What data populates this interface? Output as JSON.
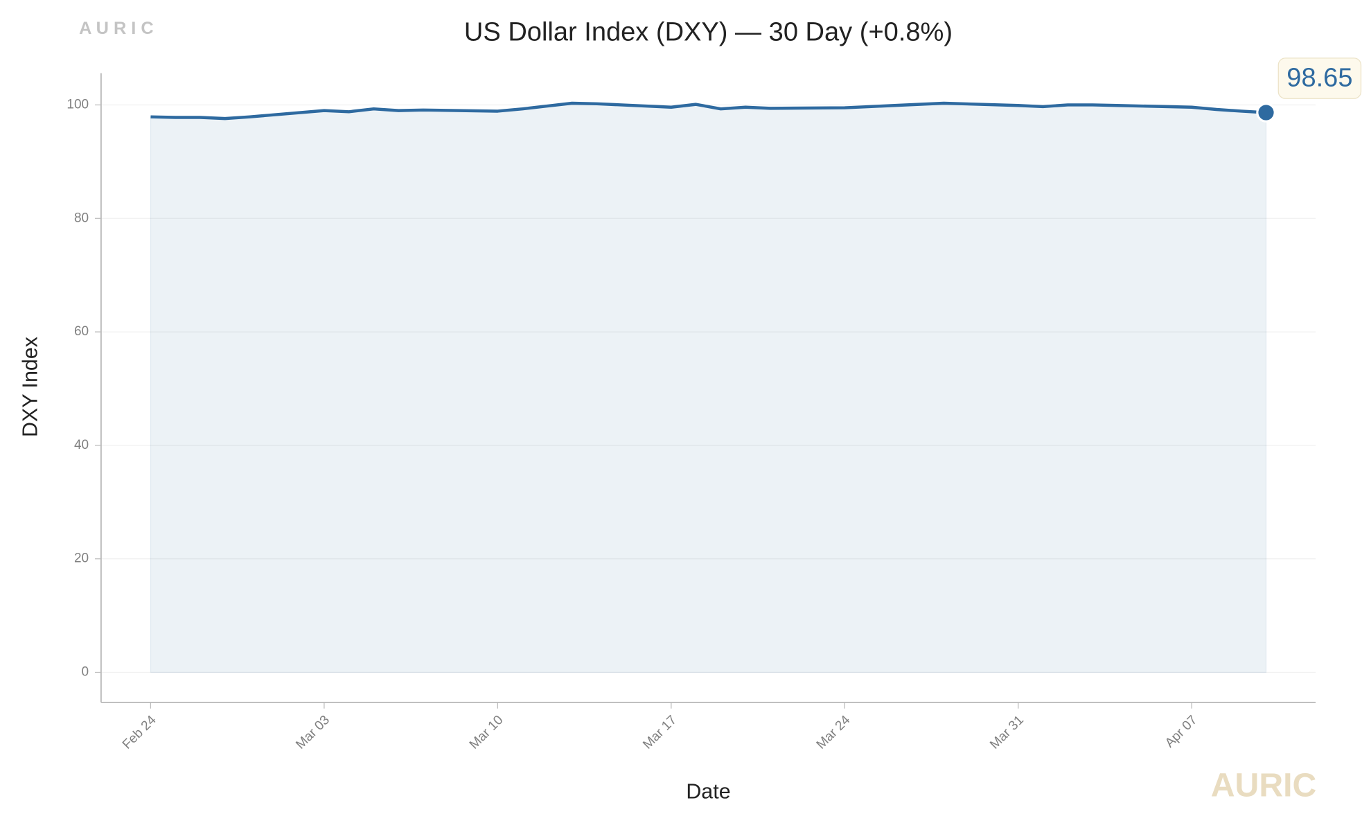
{
  "chart_data": {
    "type": "line",
    "title": "US Dollar Index (DXY) — 30 Day (+0.8%)",
    "x_label": "Date",
    "y_label": "DXY Index",
    "watermark_top": "A U R I C",
    "watermark_bottom": "AURIC",
    "x": [
      "Feb 24",
      "Feb 25",
      "Feb 26",
      "Feb 27",
      "Feb 28",
      "Mar 03",
      "Mar 04",
      "Mar 05",
      "Mar 06",
      "Mar 07",
      "Mar 10",
      "Mar 11",
      "Mar 12",
      "Mar 13",
      "Mar 14",
      "Mar 17",
      "Mar 18",
      "Mar 19",
      "Mar 20",
      "Mar 21",
      "Mar 24",
      "Mar 25",
      "Mar 26",
      "Mar 27",
      "Mar 28",
      "Mar 31",
      "Apr 01",
      "Apr 02",
      "Apr 03",
      "Apr 04",
      "Apr 07",
      "Apr 08",
      "Apr 09",
      "Apr 10"
    ],
    "series": [
      {
        "name": "DXY",
        "color": "#2e6aa0",
        "values": [
          97.9,
          97.8,
          97.8,
          97.6,
          97.9,
          99.0,
          98.8,
          99.3,
          99.0,
          99.1,
          98.9,
          99.3,
          99.8,
          100.3,
          100.2,
          99.6,
          100.1,
          99.3,
          99.6,
          99.4,
          99.5,
          99.7,
          99.9,
          100.1,
          100.3,
          99.9,
          99.7,
          100.0,
          100.0,
          99.9,
          99.6,
          99.2,
          98.9,
          98.65
        ]
      }
    ],
    "xlim": [
      "Feb 22",
      "Apr 12"
    ],
    "xticks": [
      "Feb 24",
      "Mar 03",
      "Mar 10",
      "Mar 17",
      "Mar 24",
      "Mar 31",
      "Apr 07"
    ],
    "ylim": [
      -5.3,
      105.6
    ],
    "yticks": [
      0,
      20,
      40,
      60,
      80,
      100
    ],
    "grid": true,
    "fill": true
  }
}
